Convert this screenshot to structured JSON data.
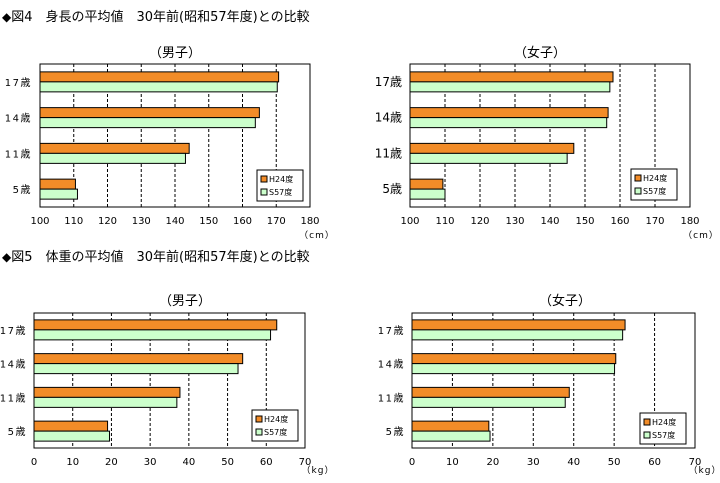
{
  "figures": [
    {
      "title": "図4　身長の平均値　30年前(昭和57年度)との比較",
      "marker": "◆"
    },
    {
      "title": "図5　体重の平均値　30年前(昭和57年度)との比較",
      "marker": "◆"
    }
  ],
  "colors": {
    "h24": "#f28c28",
    "s57": "#ccffcc",
    "border": "#000000",
    "grid": "#000000"
  },
  "chart_data": [
    {
      "type": "bar",
      "orientation": "horizontal",
      "title": "（男子）",
      "xlabel": "（cm）",
      "categories": [
        "17歳",
        "14歳",
        "11歳",
        "5歳"
      ],
      "xlim": [
        100,
        180
      ],
      "xticks": [
        100,
        110,
        120,
        130,
        140,
        150,
        160,
        170,
        180
      ],
      "series": [
        {
          "name": "H24度",
          "values": [
            170.7,
            165.0,
            144.2,
            110.5
          ]
        },
        {
          "name": "S57度",
          "values": [
            170.3,
            163.8,
            143.1,
            111.1
          ]
        }
      ],
      "legend_position": "bottom-right",
      "grid": "vertical-dashed"
    },
    {
      "type": "bar",
      "orientation": "horizontal",
      "title": "（女子）",
      "xlabel": "（cm）",
      "categories": [
        "17歳",
        "14歳",
        "11歳",
        "5歳"
      ],
      "xlim": [
        100,
        180
      ],
      "xticks": [
        100,
        110,
        120,
        130,
        140,
        150,
        160,
        170,
        180
      ],
      "series": [
        {
          "name": "H24度",
          "values": [
            158.0,
            156.6,
            146.8,
            109.4
          ]
        },
        {
          "name": "S57度",
          "values": [
            157.1,
            156.2,
            144.9,
            110.0
          ]
        }
      ],
      "legend_position": "bottom-right",
      "grid": "vertical-dashed"
    },
    {
      "type": "bar",
      "orientation": "horizontal",
      "title": "（男子）",
      "xlabel": "（kg）",
      "categories": [
        "17歳",
        "14歳",
        "11歳",
        "5歳"
      ],
      "xlim": [
        0,
        70
      ],
      "xticks": [
        0,
        10,
        20,
        30,
        40,
        50,
        60,
        70
      ],
      "series": [
        {
          "name": "H24度",
          "values": [
            62.7,
            53.9,
            37.7,
            19.0
          ]
        },
        {
          "name": "S57度",
          "values": [
            61.1,
            52.7,
            36.9,
            19.5
          ]
        }
      ],
      "legend_position": "bottom-right",
      "grid": "vertical-dashed"
    },
    {
      "type": "bar",
      "orientation": "horizontal",
      "title": "（女子）",
      "xlabel": "（kg）",
      "categories": [
        "17歳",
        "14歳",
        "11歳",
        "5歳"
      ],
      "xlim": [
        0,
        70
      ],
      "xticks": [
        0,
        10,
        20,
        30,
        40,
        50,
        60,
        70
      ],
      "series": [
        {
          "name": "H24度",
          "values": [
            52.7,
            50.4,
            38.9,
            19.0
          ]
        },
        {
          "name": "S57度",
          "values": [
            52.1,
            50.1,
            37.9,
            19.3
          ]
        }
      ],
      "legend_position": "bottom-right",
      "grid": "vertical-dashed"
    }
  ]
}
